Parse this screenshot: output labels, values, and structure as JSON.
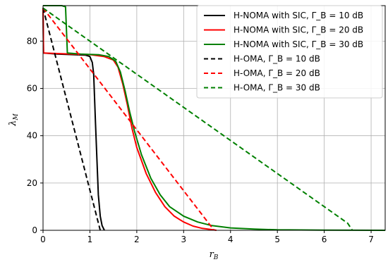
{
  "chart_data": {
    "type": "line",
    "title": "",
    "xlabel": "r_B",
    "ylabel": "λ_M",
    "xlim": [
      0,
      7.3
    ],
    "ylim": [
      0,
      95
    ],
    "xticks": [
      0,
      1,
      2,
      3,
      4,
      5,
      6,
      7
    ],
    "yticks": [
      0,
      20,
      40,
      60,
      80
    ],
    "grid": true,
    "legend_position": "top-right",
    "series": [
      {
        "name": "H-NOMA with SIC, Γ_B = 10 dB",
        "color": "#000000",
        "dash": "solid",
        "points": [
          [
            0,
            94
          ],
          [
            0.01,
            75
          ],
          [
            0.3,
            74.5
          ],
          [
            0.6,
            74.3
          ],
          [
            0.9,
            74.1
          ],
          [
            1.0,
            73.5
          ],
          [
            1.05,
            71
          ],
          [
            1.08,
            66
          ],
          [
            1.12,
            45
          ],
          [
            1.15,
            30
          ],
          [
            1.18,
            15
          ],
          [
            1.22,
            6
          ],
          [
            1.26,
            2
          ],
          [
            1.31,
            0
          ]
        ]
      },
      {
        "name": "H-NOMA with SIC, Γ_B = 20 dB",
        "color": "#ff0000",
        "dash": "solid",
        "points": [
          [
            0,
            94
          ],
          [
            0.01,
            75
          ],
          [
            0.5,
            74.6
          ],
          [
            1.0,
            74.3
          ],
          [
            1.3,
            73.5
          ],
          [
            1.5,
            72
          ],
          [
            1.6,
            69
          ],
          [
            1.7,
            62
          ],
          [
            1.8,
            53
          ],
          [
            1.9,
            43
          ],
          [
            2.0,
            35
          ],
          [
            2.2,
            24
          ],
          [
            2.4,
            16
          ],
          [
            2.6,
            10
          ],
          [
            2.8,
            6
          ],
          [
            3.0,
            3.5
          ],
          [
            3.2,
            1.8
          ],
          [
            3.4,
            0.8
          ],
          [
            3.6,
            0.3
          ],
          [
            3.7,
            0
          ]
        ]
      },
      {
        "name": "H-NOMA with SIC, Γ_B = 30 dB",
        "color": "#008000",
        "dash": "solid",
        "points": [
          [
            0,
            95
          ],
          [
            0.4,
            95
          ],
          [
            0.48,
            94.5
          ],
          [
            0.52,
            75
          ],
          [
            0.8,
            74.5
          ],
          [
            1.2,
            74.2
          ],
          [
            1.4,
            73.5
          ],
          [
            1.55,
            71.5
          ],
          [
            1.65,
            67
          ],
          [
            1.75,
            59
          ],
          [
            1.85,
            50
          ],
          [
            1.95,
            42
          ],
          [
            2.1,
            32
          ],
          [
            2.3,
            22
          ],
          [
            2.5,
            15
          ],
          [
            2.7,
            10
          ],
          [
            3.0,
            6
          ],
          [
            3.3,
            3.5
          ],
          [
            3.6,
            2
          ],
          [
            4.0,
            1
          ],
          [
            4.5,
            0.5
          ],
          [
            5.0,
            0.2
          ],
          [
            6.0,
            0.05
          ],
          [
            7.3,
            0
          ]
        ]
      },
      {
        "name": "H-OMA, Γ_B = 10 dB",
        "color": "#000000",
        "dash": "dashed",
        "points": [
          [
            0,
            94
          ],
          [
            1.22,
            0
          ]
        ]
      },
      {
        "name": "H-OMA, Γ_B = 20 dB",
        "color": "#ff0000",
        "dash": "dashed",
        "points": [
          [
            0,
            94
          ],
          [
            3.65,
            0
          ]
        ]
      },
      {
        "name": "H-OMA, Γ_B = 30 dB",
        "color": "#008000",
        "dash": "dashed",
        "points": [
          [
            0,
            94
          ],
          [
            6.5,
            3
          ],
          [
            6.6,
            0
          ]
        ]
      }
    ]
  }
}
